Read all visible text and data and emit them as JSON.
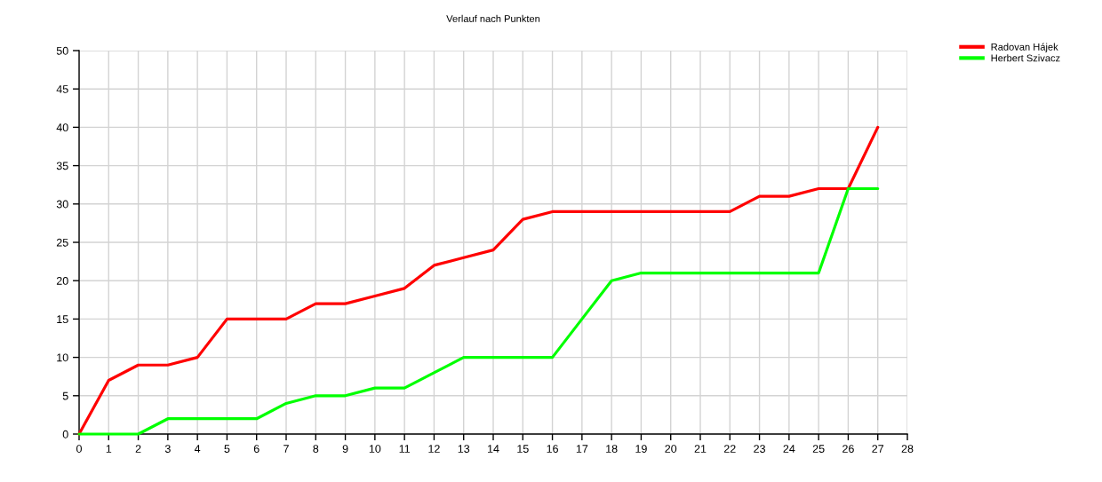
{
  "chart_data": {
    "type": "line",
    "title": "Verlauf nach Punkten",
    "x": [
      0,
      1,
      2,
      3,
      4,
      5,
      6,
      7,
      8,
      9,
      10,
      11,
      12,
      13,
      14,
      15,
      16,
      17,
      18,
      19,
      20,
      21,
      22,
      23,
      24,
      25,
      26,
      27
    ],
    "series": [
      {
        "name": "Radovan Hájek",
        "color": "#ff0000",
        "values": [
          0,
          7,
          9,
          9,
          10,
          15,
          15,
          15,
          17,
          17,
          18,
          19,
          22,
          23,
          24,
          28,
          29,
          29,
          29,
          29,
          29,
          29,
          29,
          31,
          31,
          32,
          32,
          40
        ]
      },
      {
        "name": "Herbert Szivacz",
        "color": "#00ff00",
        "values": [
          0,
          0,
          0,
          2,
          2,
          2,
          2,
          4,
          5,
          5,
          6,
          6,
          8,
          10,
          10,
          10,
          10,
          15,
          20,
          21,
          21,
          21,
          21,
          21,
          21,
          21,
          32,
          32
        ]
      }
    ],
    "xlim": [
      0,
      28
    ],
    "xticks": [
      0,
      1,
      2,
      3,
      4,
      5,
      6,
      7,
      8,
      9,
      10,
      11,
      12,
      13,
      14,
      15,
      16,
      17,
      18,
      19,
      20,
      21,
      22,
      23,
      24,
      25,
      26,
      27,
      28
    ],
    "ylim": [
      0,
      50
    ],
    "yticks": [
      0,
      5,
      10,
      15,
      20,
      25,
      30,
      35,
      40,
      45,
      50
    ],
    "grid": true,
    "legend": "top right",
    "marker": "none",
    "line_style": "solid"
  }
}
